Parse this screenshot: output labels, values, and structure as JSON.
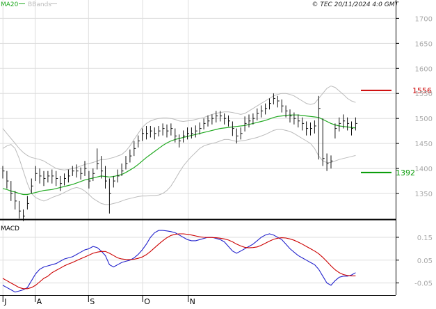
{
  "header": {
    "ma_label": "MA20",
    "bbands_label": "BBands",
    "copyright": "© TEC 20/11/2024 4:0 GMT"
  },
  "colors": {
    "ma": "#22aa22",
    "bbands": "#bbbbbb",
    "candle": "#111111",
    "resistance": "#cc0000",
    "support": "#009900",
    "macd": "#2222cc",
    "signal": "#cc0000",
    "grid": "#dddddd"
  },
  "chart_data": [
    {
      "type": "line",
      "subtype": "ohlc-bars",
      "title": "",
      "ylim": [
        1300,
        1720
      ],
      "y_ticks": [
        1350,
        1400,
        1450,
        1500,
        1550,
        1600,
        1650,
        1700
      ],
      "x_month_labels": [
        "J",
        "A",
        "S",
        "O",
        "N"
      ],
      "x_month_positions": [
        0.04,
        7.9,
        20.9,
        34.1,
        45.2
      ],
      "levels": {
        "resistance": 1556,
        "support": 1392
      },
      "level_labels": {
        "resistance": "1556",
        "support": "1392"
      },
      "close": [
        1395,
        1375,
        1350,
        1335,
        1315,
        1305,
        1330,
        1365,
        1390,
        1385,
        1380,
        1385,
        1385,
        1380,
        1370,
        1380,
        1385,
        1395,
        1395,
        1390,
        1400,
        1375,
        1390,
        1410,
        1395,
        1375,
        1350,
        1375,
        1385,
        1395,
        1410,
        1425,
        1440,
        1455,
        1470,
        1470,
        1475,
        1470,
        1475,
        1480,
        1475,
        1480,
        1465,
        1455,
        1465,
        1470,
        1470,
        1475,
        1480,
        1490,
        1495,
        1500,
        1505,
        1505,
        1500,
        1495,
        1480,
        1465,
        1470,
        1490,
        1495,
        1500,
        1510,
        1515,
        1520,
        1530,
        1540,
        1535,
        1525,
        1515,
        1505,
        1500,
        1495,
        1490,
        1480,
        1480,
        1485,
        1520,
        1420,
        1410,
        1415,
        1480,
        1490,
        1495,
        1490,
        1480,
        1490
      ],
      "high": [
        1405,
        1395,
        1375,
        1355,
        1335,
        1318,
        1345,
        1380,
        1405,
        1400,
        1395,
        1395,
        1398,
        1395,
        1385,
        1390,
        1398,
        1405,
        1408,
        1402,
        1415,
        1395,
        1400,
        1440,
        1425,
        1405,
        1380,
        1385,
        1398,
        1410,
        1425,
        1438,
        1455,
        1466,
        1480,
        1485,
        1485,
        1482,
        1485,
        1490,
        1488,
        1490,
        1480,
        1468,
        1476,
        1482,
        1482,
        1486,
        1492,
        1500,
        1506,
        1508,
        1515,
        1515,
        1510,
        1506,
        1494,
        1480,
        1482,
        1504,
        1508,
        1510,
        1520,
        1526,
        1530,
        1540,
        1550,
        1545,
        1538,
        1526,
        1518,
        1512,
        1508,
        1502,
        1494,
        1492,
        1496,
        1545,
        1500,
        1430,
        1426,
        1490,
        1502,
        1508,
        1502,
        1494,
        1502
      ],
      "low": [
        1380,
        1360,
        1335,
        1318,
        1300,
        1295,
        1318,
        1350,
        1375,
        1370,
        1365,
        1372,
        1370,
        1365,
        1355,
        1366,
        1372,
        1385,
        1382,
        1378,
        1385,
        1360,
        1375,
        1398,
        1380,
        1360,
        1310,
        1362,
        1372,
        1385,
        1398,
        1412,
        1425,
        1442,
        1455,
        1458,
        1462,
        1458,
        1464,
        1466,
        1462,
        1466,
        1452,
        1442,
        1452,
        1458,
        1460,
        1462,
        1468,
        1478,
        1484,
        1488,
        1492,
        1494,
        1488,
        1484,
        1465,
        1450,
        1458,
        1474,
        1482,
        1488,
        1496,
        1502,
        1508,
        1518,
        1528,
        1522,
        1512,
        1502,
        1492,
        1488,
        1482,
        1476,
        1466,
        1466,
        1470,
        1418,
        1405,
        1395,
        1400,
        1460,
        1474,
        1480,
        1476,
        1466,
        1476
      ],
      "ma": [
        1360,
        1358,
        1355,
        1353,
        1350,
        1348,
        1348,
        1350,
        1352,
        1354,
        1356,
        1357,
        1358,
        1360,
        1362,
        1364,
        1366,
        1368,
        1371,
        1374,
        1377,
        1379,
        1381,
        1383,
        1385,
        1384,
        1383,
        1384,
        1386,
        1388,
        1392,
        1397,
        1402,
        1408,
        1415,
        1422,
        1428,
        1434,
        1440,
        1446,
        1451,
        1455,
        1458,
        1460,
        1462,
        1464,
        1466,
        1468,
        1470,
        1472,
        1474,
        1476,
        1478,
        1480,
        1481,
        1482,
        1483,
        1484,
        1485,
        1486,
        1488,
        1490,
        1492,
        1494,
        1496,
        1499,
        1502,
        1504,
        1505,
        1506,
        1507,
        1507,
        1507,
        1506,
        1505,
        1504,
        1503,
        1502,
        1498,
        1494,
        1490,
        1487,
        1485,
        1484,
        1483,
        1482,
        1481
      ],
      "bb_upper": [
        1480,
        1470,
        1460,
        1450,
        1440,
        1432,
        1426,
        1422,
        1420,
        1418,
        1415,
        1410,
        1405,
        1400,
        1398,
        1397,
        1398,
        1400,
        1402,
        1405,
        1408,
        1410,
        1412,
        1415,
        1418,
        1418,
        1420,
        1422,
        1425,
        1428,
        1435,
        1445,
        1458,
        1470,
        1482,
        1490,
        1495,
        1498,
        1500,
        1501,
        1501,
        1500,
        1498,
        1495,
        1494,
        1495,
        1496,
        1498,
        1500,
        1502,
        1505,
        1508,
        1510,
        1512,
        1513,
        1513,
        1512,
        1510,
        1508,
        1510,
        1515,
        1520,
        1525,
        1530,
        1535,
        1540,
        1545,
        1548,
        1550,
        1550,
        1548,
        1545,
        1540,
        1535,
        1530,
        1528,
        1530,
        1540,
        1550,
        1560,
        1565,
        1562,
        1555,
        1548,
        1540,
        1535,
        1532
      ],
      "bb_lower": [
        1440,
        1445,
        1448,
        1440,
        1420,
        1395,
        1370,
        1350,
        1342,
        1338,
        1335,
        1338,
        1342,
        1345,
        1348,
        1352,
        1356,
        1360,
        1362,
        1360,
        1355,
        1348,
        1340,
        1335,
        1330,
        1328,
        1328,
        1330,
        1332,
        1335,
        1338,
        1340,
        1342,
        1344,
        1345,
        1345,
        1346,
        1346,
        1347,
        1350,
        1356,
        1365,
        1378,
        1392,
        1405,
        1415,
        1424,
        1432,
        1440,
        1445,
        1448,
        1450,
        1452,
        1455,
        1458,
        1458,
        1456,
        1454,
        1455,
        1456,
        1458,
        1460,
        1462,
        1465,
        1468,
        1472,
        1476,
        1478,
        1478,
        1476,
        1474,
        1470,
        1465,
        1460,
        1455,
        1450,
        1440,
        1425,
        1415,
        1412,
        1412,
        1415,
        1418,
        1420,
        1422,
        1424,
        1426
      ]
    },
    {
      "type": "line",
      "title": "MACD",
      "ylim": [
        -0.1,
        0.22
      ],
      "y_ticks": [
        -0.05,
        0.05,
        0.15
      ],
      "y_tick_labels": [
        "-0.05",
        "0.05",
        "0.15"
      ],
      "series": [
        {
          "role": "macd",
          "values": [
            -0.06,
            -0.07,
            -0.08,
            -0.09,
            -0.085,
            -0.08,
            -0.07,
            -0.04,
            -0.01,
            0.01,
            0.02,
            0.025,
            0.03,
            0.035,
            0.045,
            0.055,
            0.06,
            0.065,
            0.075,
            0.085,
            0.095,
            0.1,
            0.11,
            0.105,
            0.09,
            0.07,
            0.03,
            0.02,
            0.03,
            0.04,
            0.045,
            0.05,
            0.06,
            0.075,
            0.095,
            0.12,
            0.15,
            0.17,
            0.18,
            0.18,
            0.178,
            0.175,
            0.17,
            0.16,
            0.15,
            0.14,
            0.135,
            0.135,
            0.14,
            0.145,
            0.15,
            0.15,
            0.145,
            0.14,
            0.13,
            0.11,
            0.09,
            0.08,
            0.09,
            0.1,
            0.11,
            0.12,
            0.135,
            0.15,
            0.16,
            0.165,
            0.16,
            0.15,
            0.14,
            0.12,
            0.1,
            0.085,
            0.07,
            0.06,
            0.05,
            0.04,
            0.03,
            0.01,
            -0.02,
            -0.05,
            -0.06,
            -0.04,
            -0.025,
            -0.02,
            -0.02,
            -0.015,
            -0.005
          ]
        },
        {
          "role": "signal",
          "values": [
            -0.03,
            -0.04,
            -0.05,
            -0.06,
            -0.07,
            -0.075,
            -0.075,
            -0.07,
            -0.06,
            -0.045,
            -0.03,
            -0.02,
            -0.005,
            0.005,
            0.015,
            0.025,
            0.033,
            0.04,
            0.048,
            0.056,
            0.064,
            0.072,
            0.08,
            0.085,
            0.088,
            0.088,
            0.08,
            0.07,
            0.06,
            0.055,
            0.053,
            0.052,
            0.054,
            0.058,
            0.064,
            0.074,
            0.088,
            0.104,
            0.12,
            0.135,
            0.148,
            0.158,
            0.163,
            0.165,
            0.165,
            0.163,
            0.16,
            0.156,
            0.152,
            0.15,
            0.149,
            0.149,
            0.148,
            0.146,
            0.143,
            0.138,
            0.13,
            0.12,
            0.112,
            0.106,
            0.104,
            0.105,
            0.108,
            0.115,
            0.124,
            0.133,
            0.141,
            0.146,
            0.148,
            0.147,
            0.143,
            0.137,
            0.129,
            0.12,
            0.11,
            0.1,
            0.09,
            0.078,
            0.062,
            0.044,
            0.025,
            0.008,
            -0.005,
            -0.013,
            -0.017,
            -0.019,
            -0.019
          ]
        }
      ]
    }
  ]
}
